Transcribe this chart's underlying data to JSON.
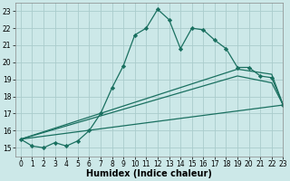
{
  "title": "",
  "xlabel": "Humidex (Indice chaleur)",
  "bg_color": "#cce8e8",
  "line_color": "#1a7060",
  "grid_color": "#aacccc",
  "xlim": [
    -0.5,
    23
  ],
  "ylim": [
    14.5,
    23.5
  ],
  "xticks": [
    0,
    1,
    2,
    3,
    4,
    5,
    6,
    7,
    8,
    9,
    10,
    11,
    12,
    13,
    14,
    15,
    16,
    17,
    18,
    19,
    20,
    21,
    22,
    23
  ],
  "yticks": [
    15,
    16,
    17,
    18,
    19,
    20,
    21,
    22,
    23
  ],
  "line1_x": [
    0,
    1,
    2,
    3,
    4,
    5,
    6,
    7,
    8,
    9,
    10,
    11,
    12,
    13,
    14,
    15,
    16,
    17,
    18,
    19,
    20,
    21,
    22,
    23
  ],
  "line1_y": [
    15.5,
    15.1,
    15.0,
    15.3,
    15.1,
    15.4,
    16.0,
    17.0,
    18.5,
    19.8,
    21.6,
    22.0,
    23.1,
    22.5,
    20.8,
    22.0,
    21.9,
    21.3,
    20.8,
    19.7,
    19.7,
    19.2,
    19.1,
    17.5
  ],
  "line2_x": [
    0,
    19,
    22,
    23
  ],
  "line2_y": [
    15.5,
    19.6,
    19.3,
    17.5
  ],
  "line3_x": [
    0,
    19,
    22,
    23
  ],
  "line3_y": [
    15.5,
    19.2,
    18.8,
    17.5
  ],
  "line4_x": [
    0,
    23
  ],
  "line4_y": [
    15.5,
    17.5
  ],
  "marker": "D",
  "markersize": 2.2,
  "linewidth": 0.9,
  "xlabel_fontsize": 7,
  "tick_fontsize": 5.5
}
